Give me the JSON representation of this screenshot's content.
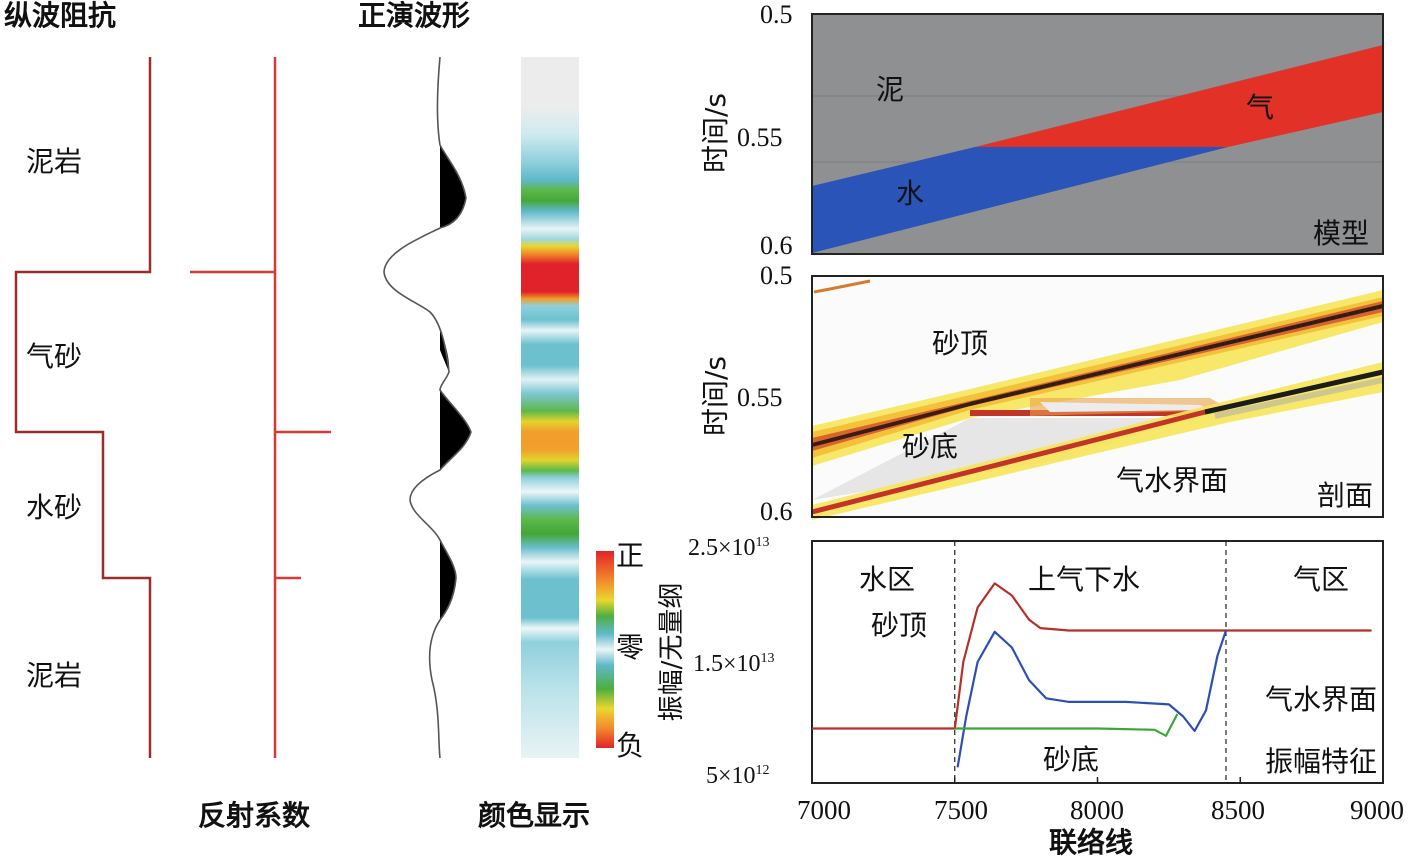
{
  "left": {
    "impedance_title": "纵波阻抗",
    "waveform_title": "正演波形",
    "reflection_label": "反射系数",
    "color_label": "颜色显示",
    "layers": [
      "泥岩",
      "气砂",
      "水砂",
      "泥岩"
    ],
    "colorbar": {
      "pos": "正",
      "zero": "零",
      "neg": "负",
      "title": "振幅/无量纲"
    }
  },
  "model": {
    "y_ticks": [
      "0.5",
      "0.55",
      "0.6"
    ],
    "ylabel": "时间/s",
    "labels": {
      "mud": "泥",
      "gas": "气",
      "water": "水",
      "corner": "模型"
    },
    "colors": {
      "mud": "#8f9091",
      "gas": "#e23127",
      "water": "#2a54b8"
    }
  },
  "section": {
    "y_ticks": [
      "0.5",
      "0.55",
      "0.6"
    ],
    "ylabel": "时间/s",
    "labels": {
      "top": "砂顶",
      "bottom": "砂底",
      "gwc": "气水界面",
      "corner": "剖面"
    }
  },
  "chart_data": {
    "type": "line",
    "xlabel": "联络线",
    "ylabel": "振幅/无量纲",
    "x_ticks": [
      "7000",
      "7500",
      "8000",
      "8500",
      "9000"
    ],
    "y_ticks": [
      {
        "mant": "2.5",
        "exp": "13"
      },
      {
        "mant": "1.5",
        "exp": "13"
      },
      {
        "mant": "5",
        "exp": "12"
      }
    ],
    "xlim": [
      7000,
      9000
    ],
    "ylim": [
      5000000000000.0,
      25000000000000.0
    ],
    "zones": [
      "水区",
      "上气下水",
      "气区"
    ],
    "dividers": [
      7500,
      8450
    ],
    "annotations": {
      "top": "砂顶",
      "bottom": "砂底",
      "gwc": "气水界面",
      "feature": "振幅特征"
    },
    "series": [
      {
        "color": "#b3302b",
        "x": [
          7000,
          7500,
          7530,
          7580,
          7640,
          7700,
          7760,
          7800,
          7900,
          8100,
          8300,
          8450,
          8700,
          8960
        ],
        "y": [
          9500000000000.0,
          9500000000000.0,
          15000000000000.0,
          19500000000000.0,
          21500000000000.0,
          20500000000000.0,
          18500000000000.0,
          17800000000000.0,
          17600000000000.0,
          17600000000000.0,
          17600000000000.0,
          17600000000000.0,
          17600000000000.0,
          17600000000000.0
        ]
      },
      {
        "color": "#2c4fb3",
        "x": [
          7510,
          7540,
          7580,
          7640,
          7700,
          7760,
          7820,
          7900,
          8100,
          8250,
          8300,
          8340,
          8380,
          8420,
          8450
        ],
        "y": [
          6300000000000.0,
          10500000000000.0,
          15000000000000.0,
          17500000000000.0,
          16200000000000.0,
          13500000000000.0,
          12000000000000.0,
          11700000000000.0,
          11700000000000.0,
          11500000000000.0,
          10500000000000.0,
          9300000000000.0,
          11000000000000.0,
          15500000000000.0,
          17600000000000.0
        ]
      },
      {
        "color": "#3aa832",
        "x": [
          7500,
          7600,
          7800,
          8000,
          8200,
          8240,
          8260,
          8280
        ],
        "y": [
          9500000000000.0,
          9500000000000.0,
          9500000000000.0,
          9500000000000.0,
          9400000000000.0,
          8900000000000.0,
          9800000000000.0,
          10700000000000.0
        ]
      }
    ]
  }
}
